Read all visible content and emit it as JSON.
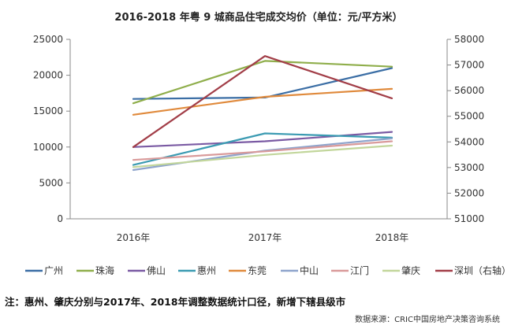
{
  "chart_data": {
    "type": "line",
    "title": "2016-2018 年粤 9 城商品住宅成交均价（单位：元/平方米）",
    "categories": [
      "2016年",
      "2017年",
      "2018年"
    ],
    "ylim": [
      0,
      25000
    ],
    "yticks": [
      "0",
      "5000",
      "10000",
      "15000",
      "20000",
      "25000"
    ],
    "y2lim": [
      51000,
      58000
    ],
    "y2ticks": [
      "51000",
      "52000",
      "53000",
      "54000",
      "55000",
      "56000",
      "57000",
      "58000"
    ],
    "grid": false,
    "legend_position": "bottom",
    "series": [
      {
        "name": "广州",
        "color": "#3b6ea5",
        "axis": "left",
        "values": [
          16700,
          16900,
          21000
        ]
      },
      {
        "name": "珠海",
        "color": "#8fae4b",
        "axis": "left",
        "values": [
          16100,
          22000,
          21200
        ]
      },
      {
        "name": "佛山",
        "color": "#7a5aa3",
        "axis": "left",
        "values": [
          10000,
          10800,
          12100
        ]
      },
      {
        "name": "惠州",
        "color": "#3b9bb2",
        "axis": "left",
        "values": [
          7500,
          11900,
          11300
        ]
      },
      {
        "name": "东莞",
        "color": "#e08a3c",
        "axis": "left",
        "values": [
          14500,
          17000,
          18100
        ]
      },
      {
        "name": "中山",
        "color": "#8ea4cc",
        "axis": "left",
        "values": [
          6800,
          9500,
          11200
        ]
      },
      {
        "name": "江门",
        "color": "#d99a9a",
        "axis": "left",
        "values": [
          8200,
          9400,
          10800
        ]
      },
      {
        "name": "肇庆",
        "color": "#c2d69b",
        "axis": "left",
        "values": [
          7200,
          8900,
          10200
        ]
      },
      {
        "name": "深圳（右轴）",
        "color": "#a23e48",
        "axis": "right",
        "values": [
          53800,
          57350,
          55700
        ]
      }
    ]
  },
  "footnote": "注：惠州、肇庆分别与2017年、2018年调整数据统计口径，新增下辖县级市",
  "source": "数据来源：CRIC中国房地产决策咨询系统"
}
